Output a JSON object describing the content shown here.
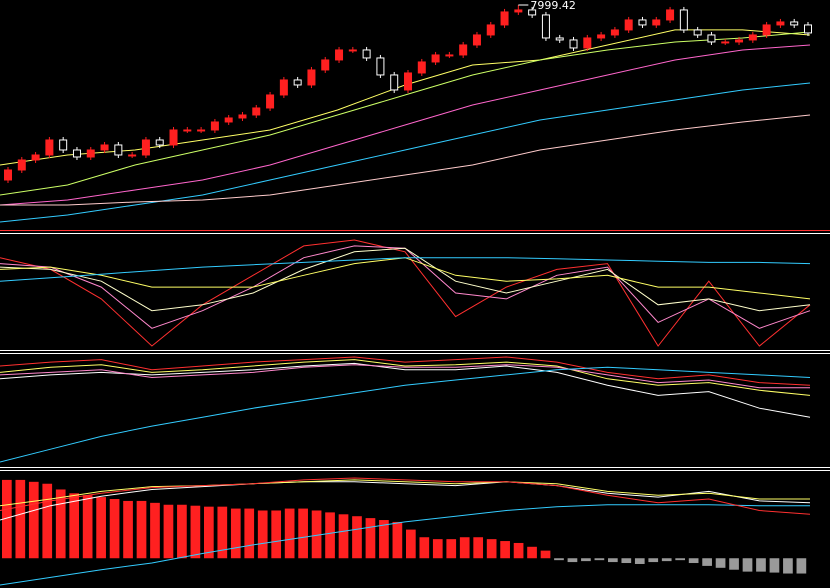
{
  "chart_data": [
    {
      "type": "candlestick",
      "open": [
        6250,
        6350,
        6450,
        6500,
        6650,
        6550,
        6480,
        6550,
        6600,
        6500,
        6500,
        6650,
        6600,
        6750,
        6750,
        6750,
        6830,
        6870,
        6900,
        6970,
        7100,
        7250,
        7200,
        7350,
        7450,
        7550,
        7550,
        7470,
        7300,
        7150,
        7320,
        7430,
        7500,
        7500,
        7600,
        7700,
        7800,
        7930,
        7950,
        7900,
        7670,
        7650,
        7570,
        7670,
        7700,
        7750,
        7850,
        7800,
        7850,
        7950,
        7750,
        7700,
        7630,
        7630,
        7650,
        7700,
        7800,
        7830,
        7800
      ],
      "high": [
        6380,
        6480,
        6530,
        6680,
        6680,
        6580,
        6580,
        6630,
        6630,
        6530,
        6680,
        6680,
        6780,
        6780,
        6780,
        6860,
        6900,
        6930,
        7000,
        7130,
        7280,
        7280,
        7380,
        7480,
        7580,
        7580,
        7580,
        7500,
        7330,
        7350,
        7460,
        7530,
        7530,
        7630,
        7730,
        7830,
        7960,
        7999.42,
        7980,
        7930,
        7700,
        7680,
        7700,
        7730,
        7780,
        7880,
        7880,
        7880,
        7980,
        7980,
        7780,
        7730,
        7660,
        7680,
        7730,
        7830,
        7860,
        7860,
        7830
      ],
      "low": [
        6220,
        6320,
        6420,
        6470,
        6520,
        6450,
        6450,
        6520,
        6470,
        6470,
        6470,
        6570,
        6570,
        6720,
        6720,
        6720,
        6800,
        6840,
        6870,
        6940,
        7070,
        7170,
        7170,
        7320,
        7420,
        7520,
        7440,
        7270,
        7120,
        7120,
        7290,
        7400,
        7470,
        7470,
        7570,
        7670,
        7770,
        7900,
        7870,
        7640,
        7620,
        7540,
        7540,
        7640,
        7670,
        7720,
        7770,
        7770,
        7820,
        7720,
        7670,
        7600,
        7600,
        7600,
        7620,
        7670,
        7770,
        7770,
        7690
      ],
      "close": [
        6350,
        6450,
        6500,
        6650,
        6550,
        6480,
        6550,
        6600,
        6500,
        6500,
        6650,
        6600,
        6750,
        6750,
        6750,
        6830,
        6870,
        6900,
        6970,
        7100,
        7250,
        7200,
        7350,
        7450,
        7550,
        7550,
        7470,
        7300,
        7150,
        7320,
        7430,
        7500,
        7500,
        7600,
        7700,
        7800,
        7930,
        7950,
        7900,
        7670,
        7650,
        7570,
        7670,
        7700,
        7750,
        7850,
        7800,
        7850,
        7950,
        7750,
        7700,
        7630,
        7630,
        7650,
        7700,
        7800,
        7830,
        7800,
        7720
      ],
      "up_color": "#ff2020",
      "down_color": "#ffffff",
      "series": [
        {
          "color": "#ffff66",
          "values": [
            6400,
            6500,
            6550,
            6650,
            6750,
            6950,
            7200,
            7400,
            7450,
            7600,
            7750,
            7750,
            7700
          ]
        },
        {
          "color": "#ccff66",
          "values": [
            6100,
            6200,
            6400,
            6550,
            6700,
            6900,
            7100,
            7300,
            7450,
            7550,
            7630,
            7670,
            7730
          ]
        },
        {
          "color": "#ff66cc",
          "values": [
            6000,
            6050,
            6150,
            6250,
            6400,
            6600,
            6800,
            7000,
            7150,
            7300,
            7450,
            7550,
            7600
          ]
        },
        {
          "color": "#33ccff",
          "values": [
            5830,
            5900,
            6000,
            6100,
            6250,
            6400,
            6550,
            6700,
            6850,
            6950,
            7050,
            7150,
            7220
          ]
        },
        {
          "color": "#ffcccc",
          "values": [
            6000,
            6000,
            6030,
            6050,
            6100,
            6200,
            6300,
            6400,
            6550,
            6650,
            6750,
            6830,
            6900
          ]
        }
      ]
    },
    {
      "type": "line",
      "series": [
        {
          "color": "#ff3030",
          "values": [
            80,
            70,
            45,
            5,
            40,
            65,
            90,
            95,
            85,
            30,
            55,
            70,
            75,
            5,
            60,
            5,
            40
          ]
        },
        {
          "color": "#ff88cc",
          "values": [
            75,
            72,
            55,
            20,
            35,
            55,
            80,
            90,
            88,
            50,
            45,
            65,
            72,
            25,
            45,
            20,
            35
          ]
        },
        {
          "color": "#ffffcc",
          "values": [
            72,
            70,
            60,
            35,
            40,
            50,
            70,
            85,
            88,
            60,
            50,
            60,
            70,
            40,
            45,
            35,
            40
          ]
        },
        {
          "color": "#ffff66",
          "values": [
            70,
            72,
            65,
            55,
            55,
            55,
            65,
            75,
            80,
            65,
            60,
            62,
            65,
            55,
            55,
            50,
            45
          ]
        },
        {
          "color": "#33ccff",
          "values": [
            60,
            63,
            66,
            69,
            72,
            74,
            76,
            78,
            80,
            80,
            80,
            79,
            78,
            77,
            76,
            76,
            75
          ]
        }
      ]
    },
    {
      "type": "line",
      "series": [
        {
          "color": "#ff3030",
          "values": [
            85,
            88,
            90,
            82,
            85,
            88,
            90,
            92,
            88,
            90,
            92,
            88,
            80,
            75,
            78,
            72,
            70
          ]
        },
        {
          "color": "#ffff66",
          "values": [
            80,
            84,
            86,
            80,
            82,
            85,
            88,
            90,
            85,
            86,
            88,
            85,
            75,
            70,
            72,
            66,
            62
          ]
        },
        {
          "color": "#ffffff",
          "values": [
            75,
            78,
            80,
            78,
            80,
            82,
            85,
            87,
            82,
            82,
            85,
            80,
            70,
            62,
            65,
            52,
            45
          ]
        },
        {
          "color": "#ff88cc",
          "values": [
            78,
            80,
            82,
            76,
            78,
            80,
            84,
            86,
            84,
            84,
            86,
            84,
            78,
            72,
            74,
            68,
            68
          ]
        },
        {
          "color": "#33ccff",
          "values": [
            10,
            20,
            30,
            38,
            45,
            52,
            58,
            64,
            70,
            74,
            78,
            82,
            84,
            82,
            80,
            78,
            76
          ]
        }
      ]
    },
    {
      "type": "bar",
      "values": [
        82,
        82,
        80,
        78,
        72,
        68,
        66,
        64,
        62,
        60,
        60,
        58,
        56,
        56,
        55,
        54,
        54,
        52,
        52,
        50,
        50,
        52,
        52,
        50,
        48,
        46,
        44,
        42,
        40,
        38,
        30,
        22,
        20,
        20,
        22,
        22,
        20,
        18,
        16,
        12,
        8,
        -2,
        -4,
        -3,
        -2,
        -4,
        -5,
        -6,
        -4,
        -3,
        -2,
        -5,
        -8,
        -10,
        -12,
        -14,
        -14,
        -15,
        -16,
        -16
      ],
      "color": "#ff2020",
      "negative_color": "#9a9a9a",
      "series": [
        {
          "color": "#ffffff",
          "values": [
            40,
            55,
            65,
            72,
            75,
            78,
            80,
            80,
            78,
            76,
            80,
            76,
            68,
            64,
            70,
            60,
            58
          ]
        },
        {
          "color": "#ffff66",
          "values": [
            55,
            62,
            70,
            75,
            76,
            78,
            80,
            82,
            80,
            78,
            80,
            78,
            70,
            66,
            68,
            62,
            62
          ]
        },
        {
          "color": "#33ccff",
          "values": [
            -28,
            -20,
            -12,
            -5,
            5,
            14,
            22,
            30,
            38,
            44,
            50,
            54,
            56,
            56,
            56,
            55,
            55
          ]
        },
        {
          "color": "#ff3030",
          "values": [
            50,
            60,
            68,
            74,
            76,
            78,
            82,
            84,
            82,
            80,
            80,
            76,
            66,
            58,
            62,
            50,
            46
          ]
        }
      ]
    }
  ]
}
